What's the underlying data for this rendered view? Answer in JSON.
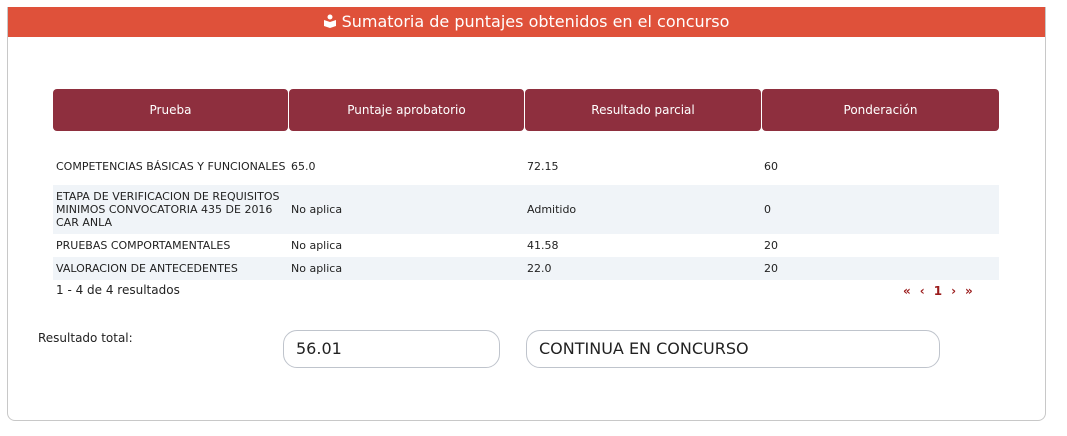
{
  "header": {
    "title": "Sumatoria de puntajes obtenidos en el concurso",
    "icon": "user-badge-icon",
    "color": "#df513a"
  },
  "table": {
    "columns": [
      "Prueba",
      "Puntaje aprobatorio",
      "Resultado parcial",
      "Ponderación"
    ],
    "rows": [
      [
        "COMPETENCIAS BÁSICAS Y FUNCIONALES",
        "65.0",
        "72.15",
        "60"
      ],
      [
        "ETAPA DE VERIFICACION DE REQUISITOS MINIMOS CONVOCATORIA 435 DE 2016 CAR ANLA",
        "No aplica",
        "Admitido",
        "0"
      ],
      [
        "PRUEBAS COMPORTAMENTALES",
        "No aplica",
        "41.58",
        "20"
      ],
      [
        "VALORACION DE ANTECEDENTES",
        "No aplica",
        "22.0",
        "20"
      ]
    ],
    "header_color": "#8e2f3e"
  },
  "pagination": {
    "summary": "1 - 4 de 4 resultados",
    "first": "«",
    "prev": "‹",
    "page": "1",
    "next": "›",
    "last": "»"
  },
  "total": {
    "label": "Resultado total:",
    "value": "56.01",
    "status": "CONTINUA EN CONCURSO"
  }
}
